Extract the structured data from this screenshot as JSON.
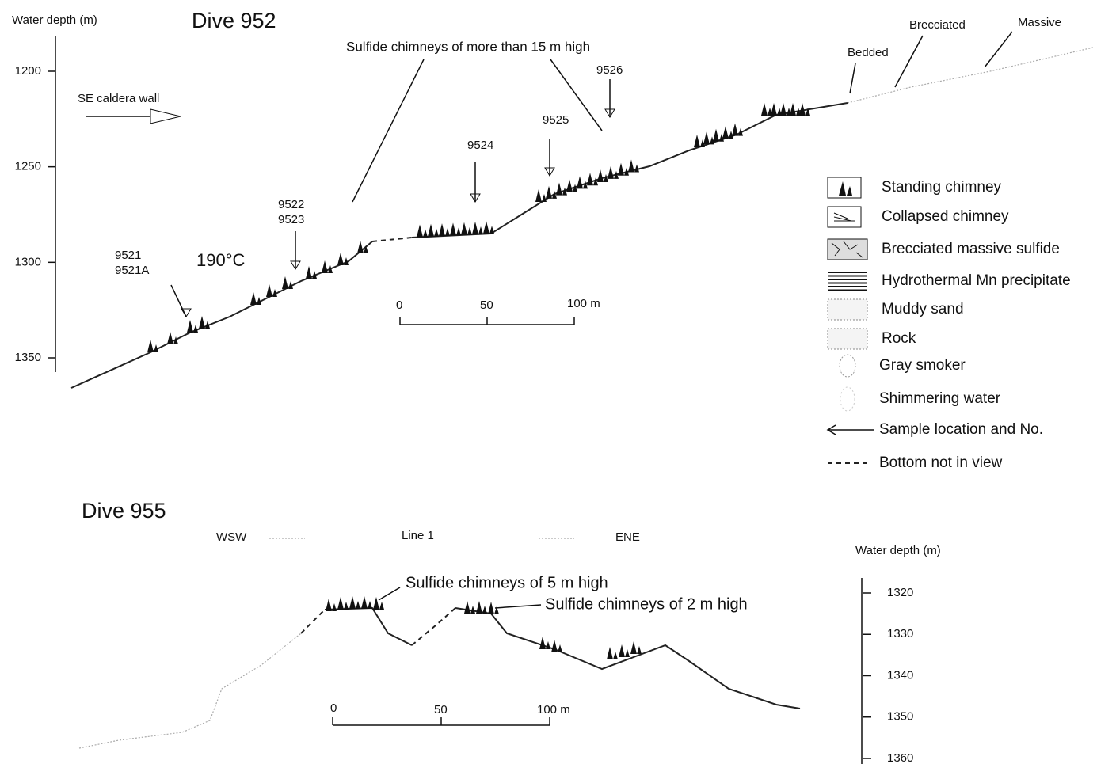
{
  "dive952": {
    "title": "Dive 952",
    "axis_label": "Water depth (m)",
    "yticks": [
      1200,
      1250,
      1300,
      1350
    ],
    "heading": "Sulfide chimneys of more than 15 m high",
    "direction": "SE  caldera wall",
    "layers": [
      "Bedded",
      "Brecciated",
      "Massive"
    ],
    "samples": [
      "9521",
      "9521A",
      "9522",
      "9523",
      "9524",
      "9525",
      "9526"
    ],
    "temperature": "190°C",
    "scale": [
      "0",
      "50",
      "100 m"
    ]
  },
  "legend": [
    "Standing chimney",
    "Collapsed chimney",
    "Brecciated massive sulfide",
    "Hydrothermal Mn precipitate",
    "Muddy sand",
    "Rock",
    "Gray smoker",
    "Shimmering water",
    "Sample location and No.",
    "Bottom not in view"
  ],
  "dive955": {
    "title": "Dive 955",
    "line": "Line 1",
    "west": "WSW",
    "east": "ENE",
    "axis_label": "Water depth (m)",
    "yticks": [
      1320,
      1330,
      1340,
      1350,
      1360
    ],
    "annotations": [
      "Sulfide chimneys of 5 m high",
      "Sulfide chimneys of 2 m high"
    ],
    "scale": [
      "0",
      "50",
      "100 m"
    ]
  }
}
